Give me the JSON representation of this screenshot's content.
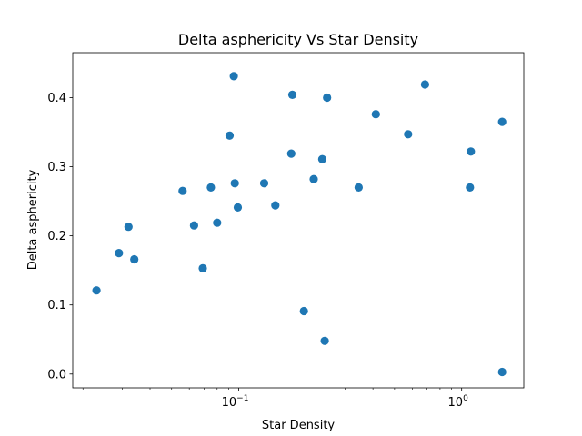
{
  "chart_data": {
    "type": "scatter",
    "title": "Delta asphericity Vs Star Density",
    "xlabel": "Star Density",
    "ylabel": "Delta asphericity",
    "xscale": "log",
    "xlim": [
      0.018,
      1.9
    ],
    "ylim": [
      -0.02,
      0.465
    ],
    "grid": false,
    "point_color": "#1f77b4",
    "x_major_ticks": [
      {
        "value": 0.1,
        "label_base": "10",
        "label_exp": "−1"
      },
      {
        "value": 1.0,
        "label_base": "10",
        "label_exp": "0"
      }
    ],
    "y_ticks": [
      {
        "value": 0.0,
        "label": "0.0"
      },
      {
        "value": 0.1,
        "label": "0.1"
      },
      {
        "value": 0.2,
        "label": "0.2"
      },
      {
        "value": 0.3,
        "label": "0.3"
      },
      {
        "value": 0.4,
        "label": "0.4"
      }
    ],
    "points": [
      {
        "x": 0.023,
        "y": 0.121
      },
      {
        "x": 0.029,
        "y": 0.175
      },
      {
        "x": 0.032,
        "y": 0.213
      },
      {
        "x": 0.034,
        "y": 0.166
      },
      {
        "x": 0.056,
        "y": 0.265
      },
      {
        "x": 0.063,
        "y": 0.215
      },
      {
        "x": 0.069,
        "y": 0.153
      },
      {
        "x": 0.075,
        "y": 0.27
      },
      {
        "x": 0.08,
        "y": 0.219
      },
      {
        "x": 0.091,
        "y": 0.345
      },
      {
        "x": 0.095,
        "y": 0.431
      },
      {
        "x": 0.096,
        "y": 0.276
      },
      {
        "x": 0.099,
        "y": 0.241
      },
      {
        "x": 0.13,
        "y": 0.276
      },
      {
        "x": 0.146,
        "y": 0.244
      },
      {
        "x": 0.172,
        "y": 0.319
      },
      {
        "x": 0.174,
        "y": 0.404
      },
      {
        "x": 0.196,
        "y": 0.091
      },
      {
        "x": 0.217,
        "y": 0.282
      },
      {
        "x": 0.237,
        "y": 0.311
      },
      {
        "x": 0.243,
        "y": 0.048
      },
      {
        "x": 0.249,
        "y": 0.4
      },
      {
        "x": 0.345,
        "y": 0.27
      },
      {
        "x": 0.412,
        "y": 0.376
      },
      {
        "x": 0.575,
        "y": 0.347
      },
      {
        "x": 0.685,
        "y": 0.419
      },
      {
        "x": 1.09,
        "y": 0.27
      },
      {
        "x": 1.1,
        "y": 0.322
      },
      {
        "x": 1.52,
        "y": 0.365
      },
      {
        "x": 1.52,
        "y": 0.003
      }
    ]
  }
}
